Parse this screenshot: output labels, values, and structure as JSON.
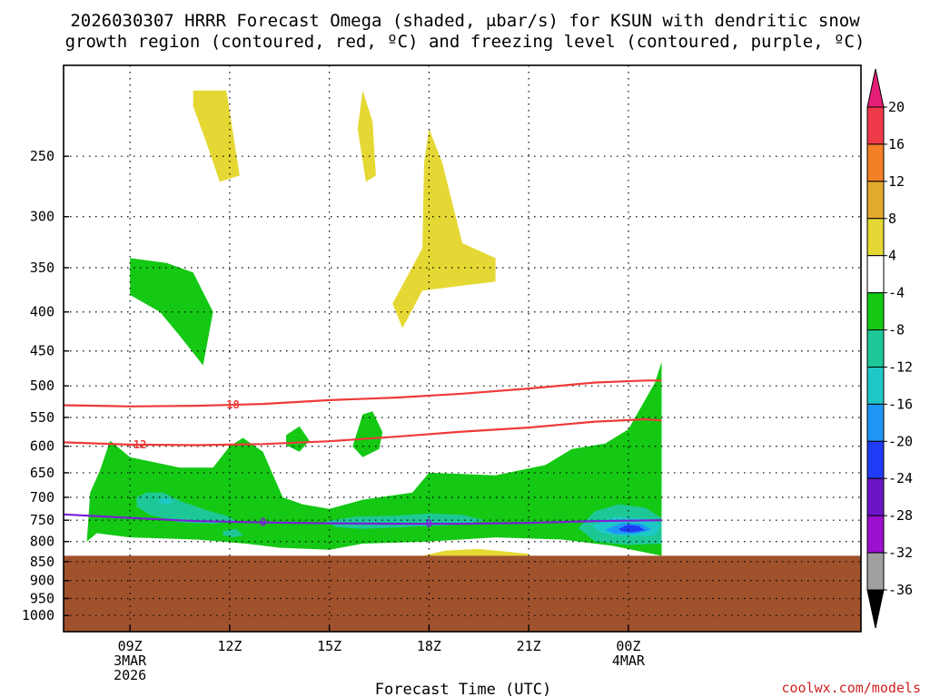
{
  "chart_data": {
    "type": "heatmap",
    "title_line1": "2026030307 HRRR Forecast Omega (shaded, μbar/s) for KSUN with dendritic snow",
    "title_line2": "growth region (contoured, red, ºC) and freezing level (contoured, purple, ºC)",
    "xlabel": "Forecast Time (UTC)",
    "credit": "coolwx.com/models",
    "x_unit": "hours since 2026-03-03 07Z",
    "xlim": [
      7,
      31
    ],
    "ylim_mb": [
      1050,
      190
    ],
    "y_scale": "log-pressure (reversed)",
    "grid": true,
    "y_ticks": [
      250,
      300,
      350,
      400,
      450,
      500,
      550,
      600,
      650,
      700,
      750,
      800,
      850,
      900,
      950,
      1000
    ],
    "x_ticks": [
      {
        "hour": 9,
        "lines": [
          "09Z",
          "3MAR",
          "2026"
        ]
      },
      {
        "hour": 12,
        "lines": [
          "12Z"
        ]
      },
      {
        "hour": 15,
        "lines": [
          "15Z"
        ]
      },
      {
        "hour": 18,
        "lines": [
          "18Z"
        ]
      },
      {
        "hour": 21,
        "lines": [
          "21Z"
        ]
      },
      {
        "hour": 24,
        "lines": [
          "00Z",
          "4MAR"
        ]
      }
    ],
    "colorbar": {
      "labels": [
        "20",
        "16",
        "12",
        "8",
        "4",
        "-4",
        "-8",
        "-12",
        "-16",
        "-20",
        "-24",
        "-28",
        "-32",
        "-36"
      ],
      "colors": [
        "#ef3a4a",
        "#f47f27",
        "#e3a92f",
        "#e5d834",
        "#ffffff",
        "#14c814",
        "#1ec896",
        "#1ec8c8",
        "#1e96f5",
        "#1e3cf5",
        "#6e14c8",
        "#9b0fcf",
        "#a0a0a0"
      ],
      "top_arrow_color": "#e61e78",
      "bottom_arrow_color": "#000000"
    },
    "terrain": {
      "color": "#a0522d",
      "surface_mb": 835
    },
    "contours": [
      {
        "label": "-18",
        "color": "#ef3a3a",
        "points": [
          [
            7,
            530
          ],
          [
            9,
            532
          ],
          [
            11,
            531
          ],
          [
            13,
            528
          ],
          [
            15,
            522
          ],
          [
            17,
            518
          ],
          [
            19,
            512
          ],
          [
            21,
            504
          ],
          [
            23,
            495
          ],
          [
            24.5,
            492
          ],
          [
            25,
            492
          ]
        ]
      },
      {
        "label": "-12",
        "color": "#ef3a3a",
        "points": [
          [
            7,
            593
          ],
          [
            9,
            597
          ],
          [
            11,
            598
          ],
          [
            13,
            596
          ],
          [
            15,
            591
          ],
          [
            17,
            583
          ],
          [
            19,
            574
          ],
          [
            21,
            567
          ],
          [
            23,
            557
          ],
          [
            24.5,
            553
          ],
          [
            25,
            555
          ]
        ]
      },
      {
        "label": "0",
        "color": "#7a1fd6",
        "points": [
          [
            7,
            737
          ],
          [
            9,
            745
          ],
          [
            11,
            752
          ],
          [
            13,
            755
          ],
          [
            15,
            757
          ],
          [
            17,
            758
          ],
          [
            19,
            758
          ],
          [
            21,
            756
          ],
          [
            23,
            752
          ],
          [
            25,
            750
          ]
        ]
      }
    ],
    "regions": [
      {
        "color": "#e5d834",
        "points": [
          [
            10.9,
            205
          ],
          [
            11.9,
            205
          ],
          [
            12.3,
            265
          ],
          [
            11.7,
            270
          ],
          [
            11.3,
            240
          ],
          [
            10.9,
            215
          ]
        ]
      },
      {
        "color": "#e5d834",
        "points": [
          [
            16,
            205
          ],
          [
            16.3,
            225
          ],
          [
            16.4,
            265
          ],
          [
            16.1,
            270
          ],
          [
            15.85,
            230
          ]
        ]
      },
      {
        "color": "#e5d834",
        "points": [
          [
            17.8,
            330
          ],
          [
            17.85,
            255
          ],
          [
            18,
            230
          ],
          [
            18.4,
            255
          ],
          [
            19,
            325
          ],
          [
            20,
            340
          ],
          [
            20,
            365
          ],
          [
            17.8,
            375
          ],
          [
            17.2,
            420
          ],
          [
            16.9,
            390
          ]
        ]
      },
      {
        "color": "#e5d834",
        "points": [
          [
            17.8,
            835
          ],
          [
            18.5,
            822
          ],
          [
            19.5,
            818
          ],
          [
            21,
            830
          ],
          [
            21,
            835
          ]
        ]
      },
      {
        "color": "#14c814",
        "points": [
          [
            9,
            340
          ],
          [
            10.1,
            345
          ],
          [
            10.9,
            355
          ],
          [
            11.5,
            400
          ],
          [
            11.2,
            470
          ],
          [
            10.5,
            430
          ],
          [
            9.9,
            400
          ],
          [
            9,
            380
          ]
        ]
      },
      {
        "color": "#14c814",
        "points": [
          [
            13.7,
            580
          ],
          [
            14.1,
            565
          ],
          [
            14.4,
            590
          ],
          [
            14.1,
            610
          ],
          [
            13.7,
            598
          ]
        ]
      },
      {
        "color": "#14c814",
        "points": [
          [
            15.7,
            600
          ],
          [
            16,
            545
          ],
          [
            16.3,
            540
          ],
          [
            16.6,
            575
          ],
          [
            16.5,
            605
          ],
          [
            16,
            620
          ]
        ]
      },
      {
        "color": "#14c814",
        "points": [
          [
            7.7,
            800
          ],
          [
            7.8,
            690
          ],
          [
            8.1,
            645
          ],
          [
            8.4,
            590
          ],
          [
            9,
            620
          ],
          [
            10.5,
            640
          ],
          [
            11.5,
            640
          ],
          [
            12,
            600
          ],
          [
            12.4,
            585
          ],
          [
            13,
            610
          ],
          [
            13.6,
            700
          ],
          [
            14.2,
            715
          ],
          [
            15,
            725
          ],
          [
            16,
            705
          ],
          [
            17.5,
            690
          ],
          [
            18,
            650
          ],
          [
            20,
            655
          ],
          [
            21.5,
            635
          ],
          [
            22.3,
            605
          ],
          [
            23.3,
            595
          ],
          [
            24,
            570
          ],
          [
            24.8,
            495
          ],
          [
            25,
            465
          ],
          [
            25,
            835
          ],
          [
            23.5,
            810
          ],
          [
            22,
            795
          ],
          [
            20,
            790
          ],
          [
            18,
            800
          ],
          [
            16,
            805
          ],
          [
            15,
            820
          ],
          [
            13.5,
            815
          ],
          [
            12.5,
            805
          ],
          [
            11,
            795
          ],
          [
            9,
            790
          ],
          [
            8,
            780
          ]
        ]
      },
      {
        "color": "#1ec896",
        "points": [
          [
            9.2,
            700
          ],
          [
            9.5,
            690
          ],
          [
            10,
            690
          ],
          [
            10.6,
            710
          ],
          [
            11.4,
            730
          ],
          [
            11.9,
            740
          ],
          [
            12.2,
            752
          ],
          [
            11.5,
            758
          ],
          [
            10.5,
            755
          ],
          [
            9.6,
            738
          ],
          [
            9.2,
            720
          ]
        ]
      },
      {
        "color": "#1ec896",
        "points": [
          [
            11.8,
            775
          ],
          [
            12.2,
            770
          ],
          [
            12.4,
            785
          ],
          [
            12.1,
            790
          ],
          [
            11.8,
            785
          ]
        ]
      },
      {
        "color": "#1ec896",
        "points": [
          [
            14.9,
            752
          ],
          [
            15.8,
            742
          ],
          [
            17,
            740
          ],
          [
            18,
            735
          ],
          [
            19,
            738
          ],
          [
            19.7,
            750
          ],
          [
            19,
            760
          ],
          [
            17.5,
            765
          ],
          [
            16,
            770
          ],
          [
            15.2,
            766
          ]
        ]
      },
      {
        "color": "#1ec896",
        "points": [
          [
            22.5,
            768
          ],
          [
            23,
            730
          ],
          [
            23.7,
            715
          ],
          [
            24.5,
            722
          ],
          [
            25,
            745
          ],
          [
            25,
            805
          ],
          [
            24,
            808
          ],
          [
            23,
            800
          ]
        ]
      },
      {
        "color": "#1ec8c8",
        "points": [
          [
            9.8,
            708
          ],
          [
            10.1,
            700
          ],
          [
            10.3,
            710
          ],
          [
            10.1,
            716
          ]
        ]
      },
      {
        "color": "#1ec8c8",
        "points": [
          [
            22.9,
            762
          ],
          [
            23.6,
            742
          ],
          [
            24.5,
            746
          ],
          [
            25,
            760
          ],
          [
            24.8,
            785
          ],
          [
            24,
            788
          ],
          [
            23.2,
            780
          ]
        ]
      },
      {
        "color": "#1e96f5",
        "points": [
          [
            23.3,
            772
          ],
          [
            23.8,
            756
          ],
          [
            24.4,
            758
          ],
          [
            24.7,
            772
          ],
          [
            24.2,
            782
          ],
          [
            23.6,
            782
          ]
        ]
      },
      {
        "color": "#1e3cf5",
        "points": [
          [
            23.7,
            770
          ],
          [
            24.0,
            760
          ],
          [
            24.3,
            763
          ],
          [
            24.5,
            773
          ],
          [
            24.1,
            778
          ],
          [
            23.8,
            776
          ]
        ]
      }
    ]
  }
}
